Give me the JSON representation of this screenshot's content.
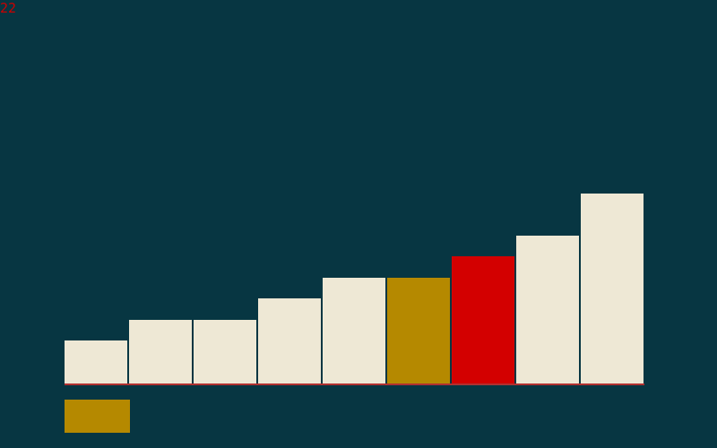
{
  "counter": {
    "value": "22",
    "color": "#cc0000"
  },
  "background": "#073642",
  "bars": {
    "max_value": 212,
    "items": [
      {
        "value": 48,
        "state": "default"
      },
      {
        "value": 71,
        "state": "default"
      },
      {
        "value": 71,
        "state": "default"
      },
      {
        "value": 95,
        "state": "default"
      },
      {
        "value": 118,
        "state": "default"
      },
      {
        "value": 118,
        "state": "selected"
      },
      {
        "value": 142,
        "state": "active"
      },
      {
        "value": 165,
        "state": "default"
      },
      {
        "value": 212,
        "state": "default"
      }
    ]
  },
  "colors": {
    "default": "#eee8d5",
    "selected": "#b58900",
    "active": "#d30000",
    "baseline": "#b03030"
  },
  "hold_slot": {
    "state": "selected"
  }
}
